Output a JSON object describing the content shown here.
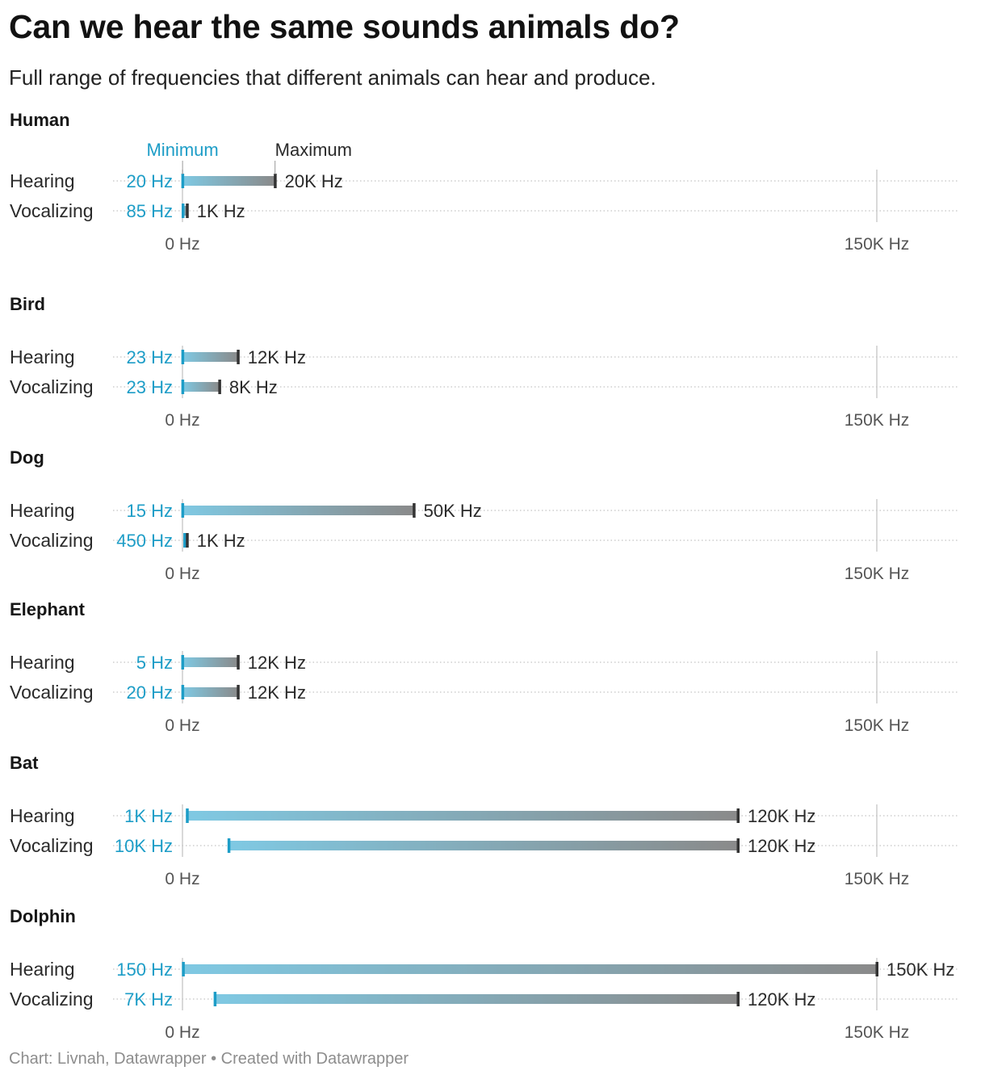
{
  "title": "Can we hear the same sounds animals do?",
  "subtitle": "Full range of frequencies that different animals can hear and produce.",
  "footer": "Chart: Livnah, Datawrapper • Created with Datawrapper",
  "colors": {
    "min": "#1d9dc7",
    "bar_start": "#7fc9e3",
    "bar_end": "#8a8a8a",
    "max": "#333333",
    "axis": "#cccccc"
  },
  "chart_data": {
    "type": "range",
    "unit": "Hz",
    "xlim": [
      0,
      150000
    ],
    "x_ticks": [
      {
        "value": 0,
        "label": "0 Hz"
      },
      {
        "value": 150000,
        "label": "150K Hz"
      }
    ],
    "legend": {
      "min_label": "Minimum",
      "max_label": "Maximum"
    },
    "row_labels": [
      "Hearing",
      "Vocalizing"
    ],
    "groups": [
      {
        "name": "Human",
        "rows": [
          {
            "label": "Hearing",
            "min": 20,
            "max": 20000,
            "min_label": "20 Hz",
            "max_label": "20K Hz"
          },
          {
            "label": "Vocalizing",
            "min": 85,
            "max": 1000,
            "min_label": "85 Hz",
            "max_label": "1K Hz"
          }
        ]
      },
      {
        "name": "Bird",
        "rows": [
          {
            "label": "Hearing",
            "min": 23,
            "max": 12000,
            "min_label": "23 Hz",
            "max_label": "12K Hz"
          },
          {
            "label": "Vocalizing",
            "min": 23,
            "max": 8000,
            "min_label": "23 Hz",
            "max_label": "8K Hz"
          }
        ]
      },
      {
        "name": "Dog",
        "rows": [
          {
            "label": "Hearing",
            "min": 15,
            "max": 50000,
            "min_label": "15 Hz",
            "max_label": "50K Hz"
          },
          {
            "label": "Vocalizing",
            "min": 450,
            "max": 1000,
            "min_label": "450 Hz",
            "max_label": "1K Hz"
          }
        ]
      },
      {
        "name": "Elephant",
        "rows": [
          {
            "label": "Hearing",
            "min": 5,
            "max": 12000,
            "min_label": "5 Hz",
            "max_label": "12K Hz"
          },
          {
            "label": "Vocalizing",
            "min": 20,
            "max": 12000,
            "min_label": "20 Hz",
            "max_label": "12K Hz"
          }
        ]
      },
      {
        "name": "Bat",
        "rows": [
          {
            "label": "Hearing",
            "min": 1000,
            "max": 120000,
            "min_label": "1K Hz",
            "max_label": "120K Hz"
          },
          {
            "label": "Vocalizing",
            "min": 10000,
            "max": 120000,
            "min_label": "10K Hz",
            "max_label": "120K Hz"
          }
        ]
      },
      {
        "name": "Dolphin",
        "rows": [
          {
            "label": "Hearing",
            "min": 150,
            "max": 150000,
            "min_label": "150 Hz",
            "max_label": "150K Hz"
          },
          {
            "label": "Vocalizing",
            "min": 7000,
            "max": 120000,
            "min_label": "7K Hz",
            "max_label": "120K Hz"
          }
        ]
      }
    ]
  }
}
